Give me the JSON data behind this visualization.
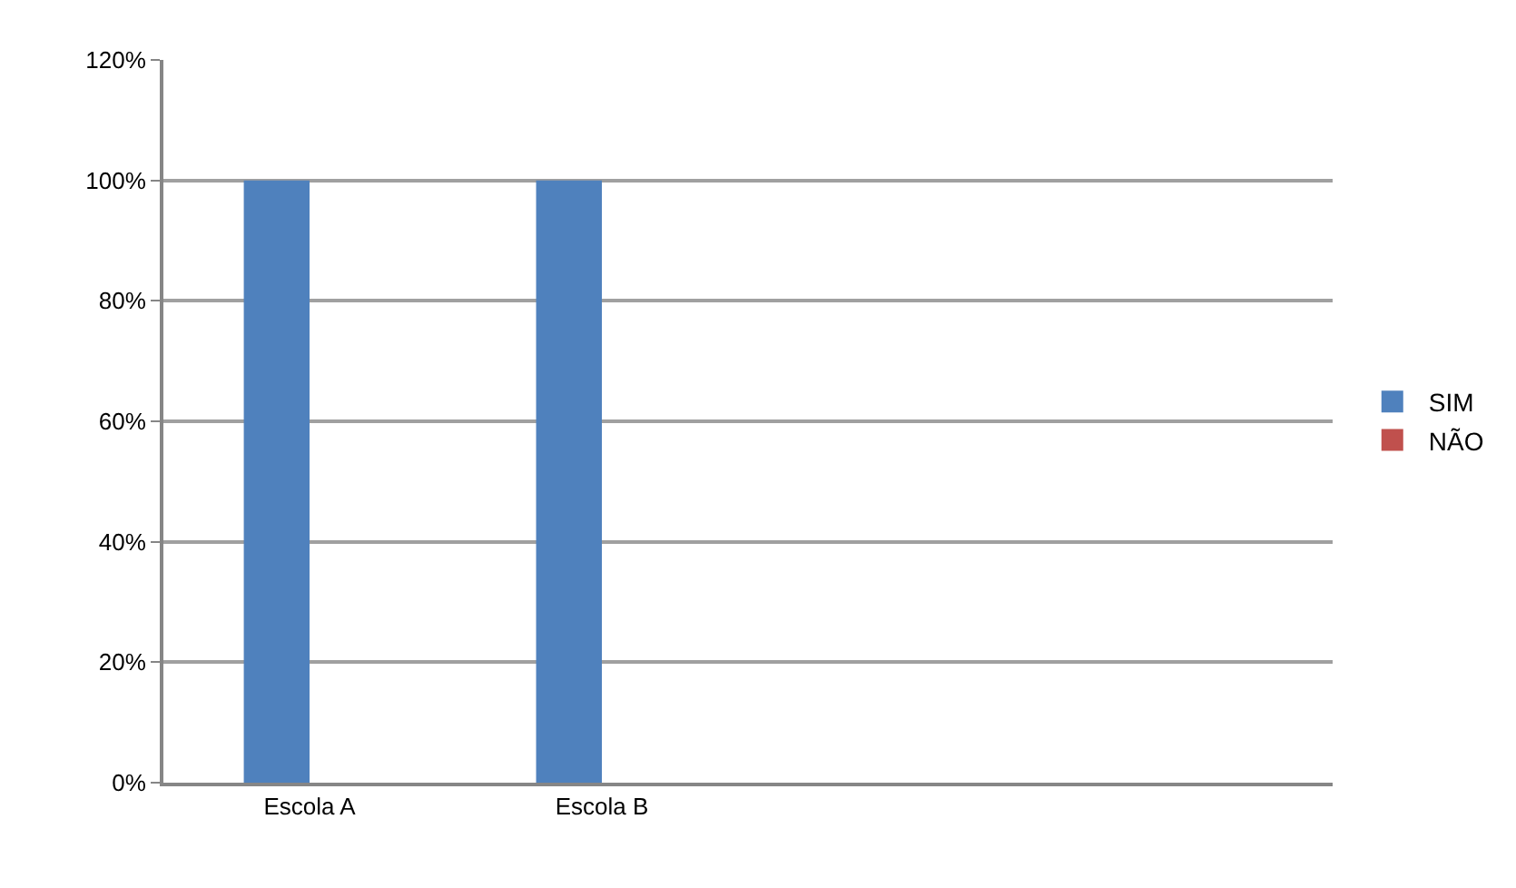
{
  "chart_data": {
    "type": "bar",
    "categories": [
      "Escola A",
      "Escola B",
      null,
      null
    ],
    "series": [
      {
        "name": "SIM",
        "color": "#4f81bd",
        "values": [
          100,
          100,
          null,
          null
        ]
      },
      {
        "name": "NÃO",
        "color": "#c0504d",
        "values": [
          0,
          0,
          null,
          null
        ]
      }
    ],
    "ylim": [
      0,
      120
    ],
    "yticks": [
      {
        "value": 0,
        "label": "0%"
      },
      {
        "value": 20,
        "label": "20%"
      },
      {
        "value": 40,
        "label": "40%"
      },
      {
        "value": 60,
        "label": "60%"
      },
      {
        "value": 80,
        "label": "80%"
      },
      {
        "value": 100,
        "label": "100%"
      },
      {
        "value": 120,
        "label": "120%"
      }
    ],
    "grid": "y",
    "legend": "right"
  }
}
